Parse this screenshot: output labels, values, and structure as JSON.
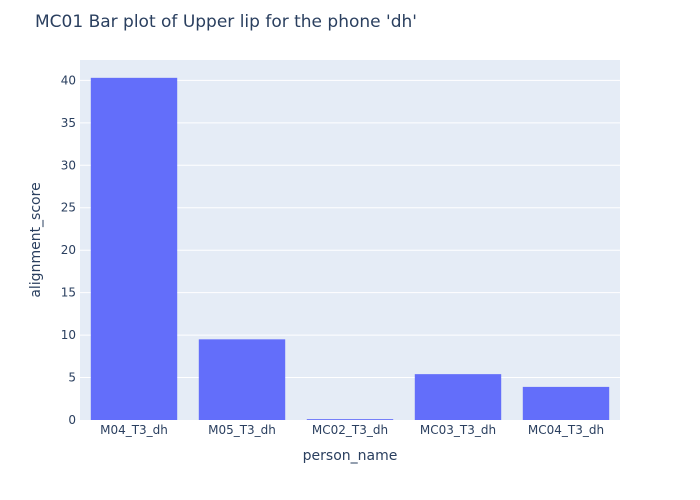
{
  "chart_data": {
    "type": "bar",
    "title": "MC01 Bar plot of Upper lip for the phone 'dh'",
    "xlabel": "person_name",
    "ylabel": "alignment_score",
    "categories": [
      "M04_T3_dh",
      "M05_T3_dh",
      "MC02_T3_dh",
      "MC03_T3_dh",
      "MC04_T3_dh"
    ],
    "values": [
      40.3,
      9.5,
      0.1,
      5.4,
      3.9
    ],
    "ylim": [
      0,
      42.4
    ],
    "yticks": [
      0,
      5,
      10,
      15,
      20,
      25,
      30,
      35,
      40
    ],
    "grid": true,
    "colors": {
      "bar": "#636efa",
      "plot_background": "#e5ecf6",
      "gridline": "#ffffff",
      "text": "#2a3f5f"
    }
  }
}
